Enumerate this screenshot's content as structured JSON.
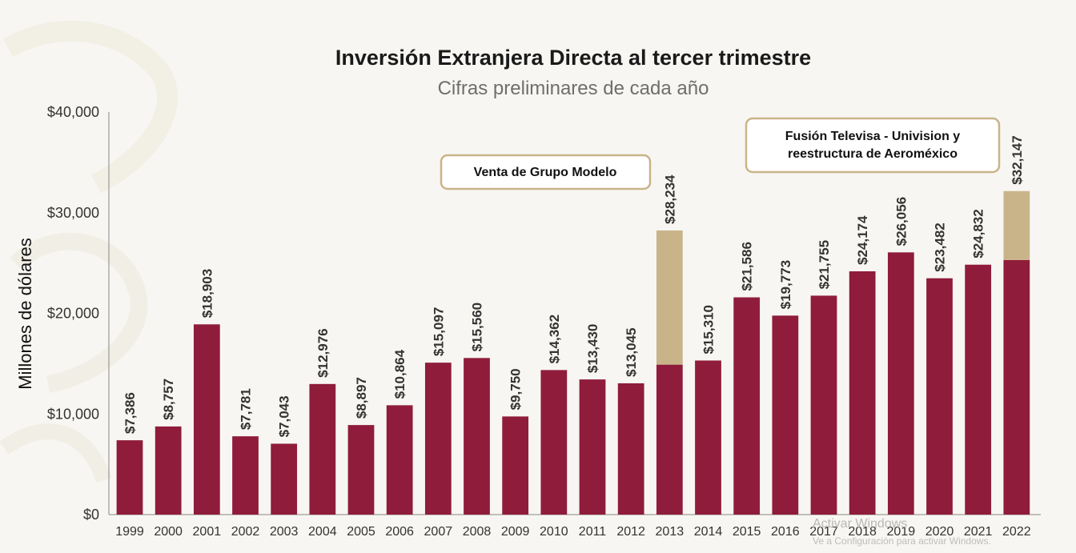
{
  "chart_data": {
    "type": "bar",
    "title": "Inversión Extranjera Directa al tercer trimestre",
    "subtitle": "Cifras preliminares de cada año",
    "ylabel": "Millones de dólares",
    "ylim": [
      0,
      40000
    ],
    "yticks": [
      "$0",
      "$10,000",
      "$20,000",
      "$30,000",
      "$40,000"
    ],
    "ytick_values": [
      0,
      10000,
      20000,
      30000,
      40000
    ],
    "categories": [
      "1999",
      "2000",
      "2001",
      "2002",
      "2003",
      "2004",
      "2005",
      "2006",
      "2007",
      "2008",
      "2009",
      "2010",
      "2011",
      "2012",
      "2013",
      "2014",
      "2015",
      "2016",
      "2017",
      "2018",
      "2019",
      "2020",
      "2021",
      "2022"
    ],
    "values": [
      7386,
      8757,
      18903,
      7781,
      7043,
      12976,
      8897,
      10864,
      15097,
      15560,
      9750,
      14362,
      13430,
      13045,
      28234,
      15310,
      21586,
      19773,
      21755,
      24174,
      26056,
      23482,
      24832,
      32147
    ],
    "labels": [
      "$7,386",
      "$8,757",
      "$18,903",
      "$7,781",
      "$7,043",
      "$12,976",
      "$8,897",
      "$10,864",
      "$15,097",
      "$15,560",
      "$9,750",
      "$14,362",
      "$13,430",
      "$13,045",
      "$28,234",
      "$15,310",
      "$21,586",
      "$19,773",
      "$21,755",
      "$24,174",
      "$26,056",
      "$23,482",
      "$24,832",
      "$32,147"
    ],
    "base_values": [
      7386,
      8757,
      18903,
      7781,
      7043,
      12976,
      8897,
      10864,
      15097,
      15560,
      9750,
      14362,
      13430,
      13045,
      14900,
      15310,
      21586,
      19773,
      21755,
      24174,
      26056,
      23482,
      24832,
      25300
    ],
    "colors": {
      "base": "#8f1c3a",
      "extraordinary": "#c9b48a"
    },
    "grid": false,
    "annotations": [
      {
        "text": "Venta de Grupo Modelo",
        "category": "2013"
      },
      {
        "text_lines": [
          "Fusión Televisa - Univision y",
          "reestructura de Aeroméxico"
        ],
        "category": "2022"
      }
    ]
  },
  "watermark": {
    "line1": "Activar Windows",
    "line2": "Ve a Configuración para activar Windows."
  }
}
